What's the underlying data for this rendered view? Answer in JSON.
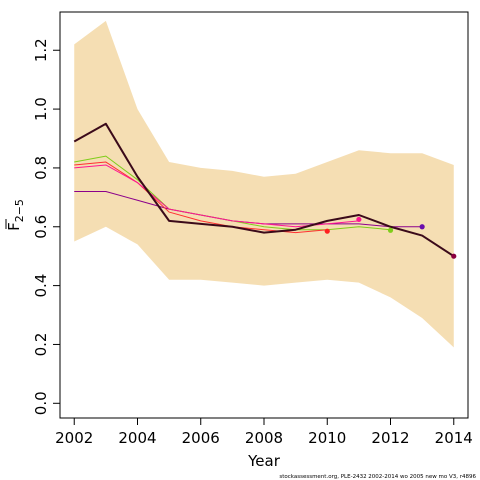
{
  "chart_data": {
    "type": "line",
    "title": "",
    "xlabel": "Year",
    "ylabel_main": "F",
    "ylabel_sub": "2−5",
    "xlim": [
      2001.55,
      2014.45
    ],
    "ylim": [
      -0.05,
      1.33
    ],
    "x_ticks": [
      2002,
      2004,
      2006,
      2008,
      2010,
      2012,
      2014
    ],
    "y_ticks": [
      0.0,
      0.2,
      0.4,
      0.6,
      0.8,
      1.0,
      1.2
    ],
    "y_tick_labels": [
      "0.0",
      "0.2",
      "0.4",
      "0.6",
      "0.8",
      "1.0",
      "1.2"
    ],
    "grid": false,
    "legend": "none",
    "band": {
      "color": "#f5deb3",
      "x": [
        2002,
        2003,
        2004,
        2005,
        2006,
        2007,
        2008,
        2009,
        2010,
        2011,
        2012,
        2013,
        2014
      ],
      "upper": [
        1.22,
        1.3,
        1.0,
        0.82,
        0.8,
        0.79,
        0.77,
        0.78,
        0.82,
        0.86,
        0.85,
        0.85,
        0.81
      ],
      "lower": [
        0.55,
        0.6,
        0.54,
        0.42,
        0.42,
        0.41,
        0.4,
        0.41,
        0.42,
        0.41,
        0.36,
        0.29,
        0.19
      ]
    },
    "series": [
      {
        "color": "#8b008b",
        "width": 1,
        "x": [
          2002,
          2003,
          2004,
          2005,
          2006,
          2007,
          2008,
          2009,
          2010,
          2011,
          2012,
          2013
        ],
        "values": [
          0.72,
          0.72,
          0.69,
          0.66,
          0.64,
          0.62,
          0.61,
          0.61,
          0.61,
          0.61,
          0.6,
          0.6
        ]
      },
      {
        "color": "#7fcd1a",
        "width": 1,
        "x": [
          2002,
          2003,
          2004,
          2005,
          2006,
          2007,
          2008,
          2009,
          2010,
          2011,
          2012
        ],
        "values": [
          0.82,
          0.84,
          0.76,
          0.66,
          0.64,
          0.62,
          0.6,
          0.59,
          0.59,
          0.6,
          0.59
        ]
      },
      {
        "color": "#ff3030",
        "width": 1,
        "x": [
          2002,
          2003,
          2004,
          2005,
          2006,
          2007,
          2008,
          2009,
          2010
        ],
        "values": [
          0.81,
          0.82,
          0.75,
          0.65,
          0.62,
          0.6,
          0.59,
          0.58,
          0.59
        ]
      },
      {
        "color": "#ff1493",
        "width": 1,
        "x": [
          2002,
          2003,
          2004,
          2005,
          2006,
          2007,
          2008,
          2009,
          2010,
          2011
        ],
        "values": [
          0.8,
          0.81,
          0.75,
          0.66,
          0.64,
          0.62,
          0.61,
          0.6,
          0.61,
          0.62
        ]
      },
      {
        "color": "#3b0a1a",
        "width": 2,
        "x": [
          2002,
          2003,
          2004,
          2005,
          2006,
          2007,
          2008,
          2009,
          2010,
          2011,
          2012,
          2013,
          2014
        ],
        "values": [
          0.89,
          0.95,
          0.77,
          0.62,
          0.61,
          0.6,
          0.58,
          0.59,
          0.62,
          0.64,
          0.6,
          0.57,
          0.5
        ]
      }
    ],
    "endpoints": [
      {
        "x": 2010,
        "y": 0.585,
        "color": "#ff2020"
      },
      {
        "x": 2011,
        "y": 0.625,
        "color": "#ff1493"
      },
      {
        "x": 2012,
        "y": 0.588,
        "color": "#7fcd1a"
      },
      {
        "x": 2013,
        "y": 0.6,
        "color": "#6a0dad"
      },
      {
        "x": 2014,
        "y": 0.5,
        "color": "#8b0040"
      }
    ],
    "footnote": "stockassessment.org, PLE-2432  2002-2014  wo  2005  new  mo  V3, r4896"
  }
}
